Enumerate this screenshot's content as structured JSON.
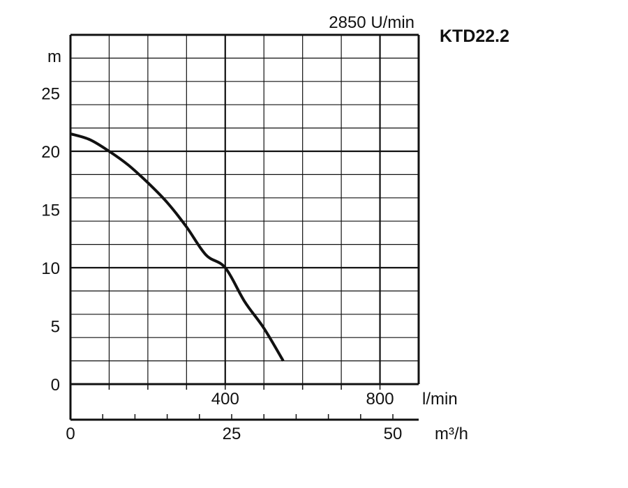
{
  "chart_data": {
    "type": "line",
    "title": "KTD22.2",
    "subtitle": "2850 U/min",
    "ylabel": "m",
    "ylim": [
      0,
      30
    ],
    "grid": true,
    "x_axes": [
      {
        "unit": "l/min",
        "range": [
          0,
          900
        ],
        "tick_labels": [
          "400",
          "800"
        ],
        "tick_values": [
          400,
          800
        ]
      },
      {
        "unit": "m³/h",
        "range": [
          0,
          54
        ],
        "tick_labels": [
          "0",
          "25",
          "50"
        ],
        "tick_values": [
          0,
          25,
          50
        ]
      }
    ],
    "y_tick_labels": [
      "0",
      "5",
      "10",
      "15",
      "20",
      "25"
    ],
    "y_tick_values": [
      0,
      5,
      10,
      15,
      20,
      25
    ],
    "series": [
      {
        "x": [
          0,
          50,
          100,
          150,
          200,
          250,
          300,
          350,
          400,
          450,
          500,
          550
        ],
        "values": [
          21.5,
          21,
          20,
          18.8,
          17.3,
          15.6,
          13.5,
          11.1,
          10,
          7.1,
          4.8,
          2
        ]
      }
    ],
    "colors": {
      "line": "#111111",
      "grid": "#111111",
      "background": "#ffffff"
    }
  }
}
